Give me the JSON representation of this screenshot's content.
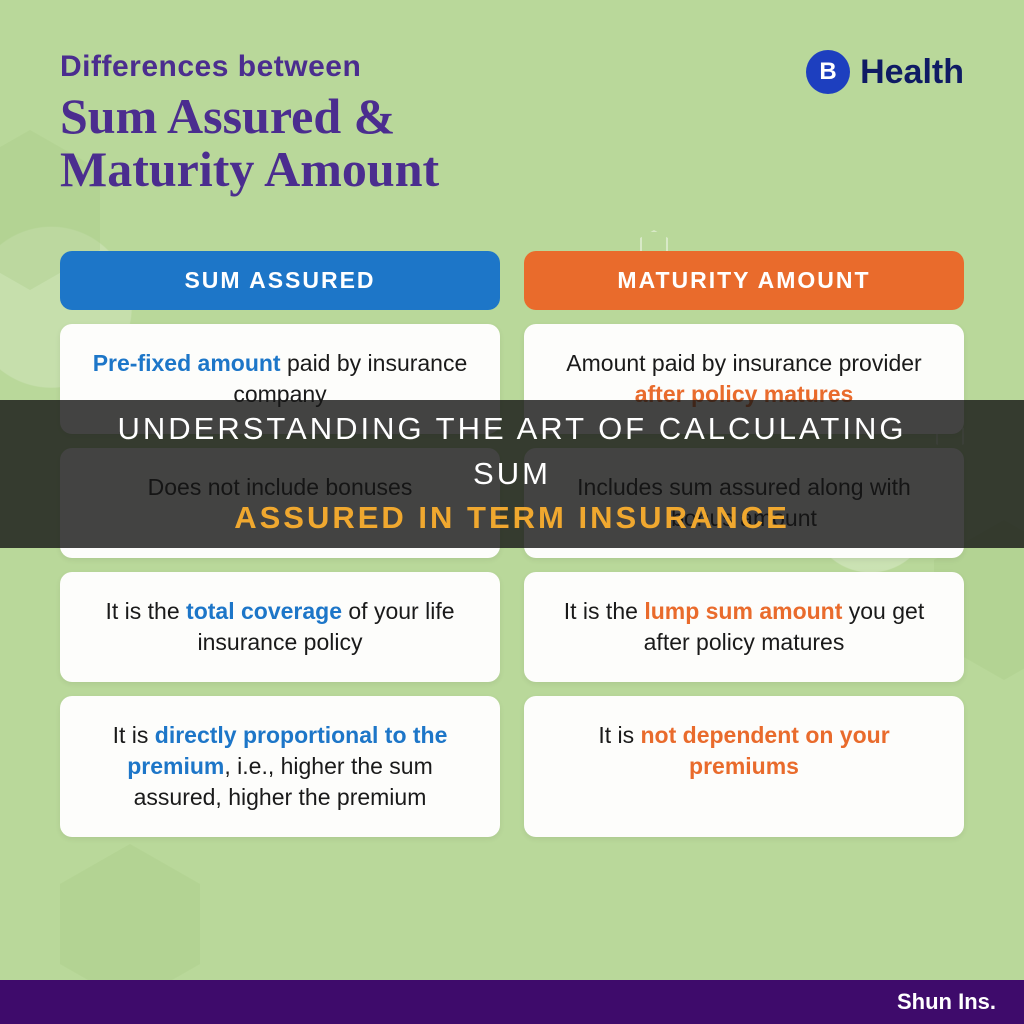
{
  "colors": {
    "page_bg": "#b9d89a",
    "purple": "#4b2d8f",
    "navy": "#0f1b64",
    "blue": "#1d76c8",
    "orange": "#e96b2c",
    "hl_blue": "#1d76c8",
    "hl_orange": "#e96b2c",
    "overlay_white": "#ffffff",
    "overlay_accent": "#f0a82f",
    "footer_bg": "#3e0b6b",
    "brand_badge": "#1d3fbf",
    "cell_bg": "#fdfdfb",
    "hex_deco": "#a8cc88"
  },
  "header": {
    "pre": "Differences between",
    "main_line1": "Sum Assured &",
    "main_line2": "Maturity Amount"
  },
  "brand": {
    "badge_letter": "B",
    "name": "Health"
  },
  "columns": {
    "left_header": "SUM ASSURED",
    "right_header": "MATURITY AMOUNT"
  },
  "rows": [
    {
      "left": {
        "segments": [
          {
            "t": "Pre-fixed amount",
            "hl": "blue"
          },
          {
            "t": " paid by insurance company"
          }
        ]
      },
      "right": {
        "segments": [
          {
            "t": "Amount paid by insurance provider "
          },
          {
            "t": "after policy matures",
            "hl": "orange"
          }
        ]
      }
    },
    {
      "left": {
        "segments": [
          {
            "t": "Does not include bonuses"
          }
        ]
      },
      "right": {
        "segments": [
          {
            "t": "Includes sum assured along with bonus amount"
          }
        ]
      }
    },
    {
      "left": {
        "segments": [
          {
            "t": "It is the "
          },
          {
            "t": "total coverage",
            "hl": "blue"
          },
          {
            "t": " of your life insurance policy"
          }
        ]
      },
      "right": {
        "segments": [
          {
            "t": "It is the "
          },
          {
            "t": "lump sum amount",
            "hl": "orange"
          },
          {
            "t": " you get after policy matures"
          }
        ]
      }
    },
    {
      "left": {
        "segments": [
          {
            "t": "It is "
          },
          {
            "t": "directly proportional to the premium",
            "hl": "blue"
          },
          {
            "t": ", i.e., higher the sum assured, higher the premium"
          }
        ]
      },
      "right": {
        "segments": [
          {
            "t": "It is "
          },
          {
            "t": "not dependent on your premiums",
            "hl": "orange"
          }
        ]
      }
    }
  ],
  "overlay": {
    "plain": "UNDERSTANDING THE ART OF CALCULATING SUM",
    "accent": "ASSURED IN TERM INSURANCE"
  },
  "footer": {
    "text": "Shun Ins."
  }
}
